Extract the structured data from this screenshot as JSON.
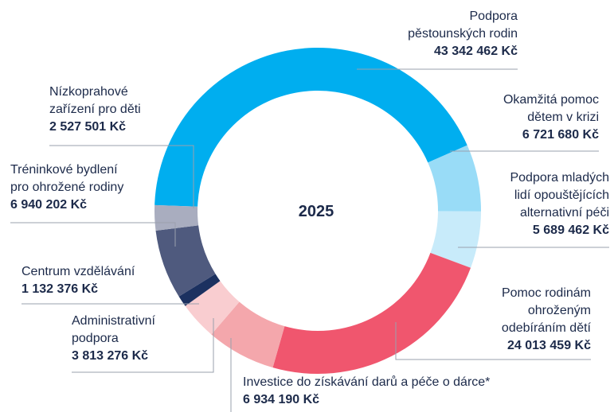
{
  "chart_data": {
    "type": "donut",
    "title": "2025",
    "categories": [
      [
        "Podpora",
        "pěstounských rodin"
      ],
      [
        "Okamžitá pomoc",
        "dětem v krizi"
      ],
      [
        "Podpora mladých",
        "lidí opouštějících",
        "alternativní péči"
      ],
      [
        "Pomoc rodinám",
        "ohroženým",
        "odebíráním dětí"
      ],
      [
        "Investice do získávání darů a péče o dárce*"
      ],
      [
        "Administrativní",
        "podpora"
      ],
      [
        "Centrum vzdělávání"
      ],
      [
        "Tréninkové bydlení",
        "pro ohrožené rodiny"
      ],
      [
        "Nízkoprahové",
        "zařízení pro děti"
      ]
    ],
    "values": [
      43342462,
      6721680,
      5689462,
      24013459,
      6934190,
      3813276,
      1132376,
      6940202,
      2527501
    ],
    "value_labels": [
      "43 342 462 Kč",
      "6 721 680 Kč",
      "5 689 462 Kč",
      "24 013 459 Kč",
      "6 934 190 Kč",
      "3 813 276 Kč",
      "1 132 376 Kč",
      "6 940 202 Kč",
      "2 527 501 Kč"
    ],
    "colors": [
      "#00aeef",
      "#99dcf7",
      "#c8ebfa",
      "#f0566e",
      "#f4a7ac",
      "#f9cdd0",
      "#1c3160",
      "#4f5a7e",
      "#a9adbf"
    ]
  }
}
